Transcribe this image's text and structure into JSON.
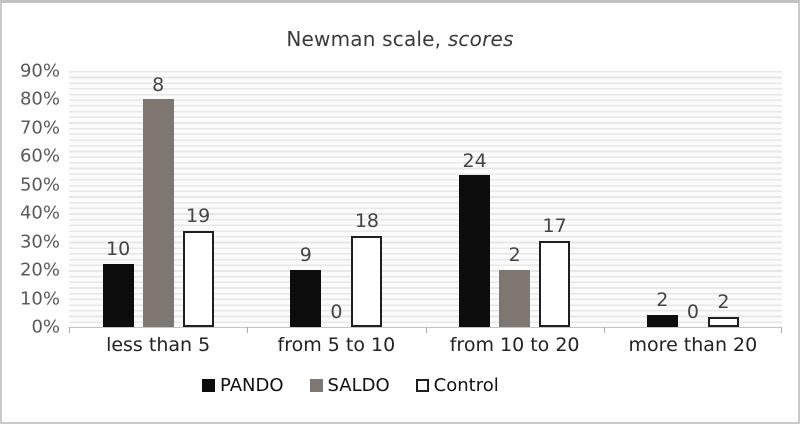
{
  "chart_data": {
    "type": "bar",
    "title_regular": "Newman scale, ",
    "title_italic": "scores",
    "categories": [
      "less than 5",
      "from 5 to 10",
      "from 10 to 20",
      "more than 20"
    ],
    "series": [
      {
        "name": "PANDO",
        "color": "#0d0d0d",
        "border_color": "#0d0d0d",
        "border_px": 0,
        "counts": [
          10,
          9,
          24,
          2
        ],
        "percents": [
          22.2,
          20.0,
          53.3,
          4.4
        ]
      },
      {
        "name": "SALDO",
        "color": "#7d7671",
        "border_color": "#7d7671",
        "border_px": 0,
        "counts": [
          8,
          0,
          2,
          0
        ],
        "percents": [
          80.0,
          0,
          20.0,
          0
        ]
      },
      {
        "name": "Control",
        "color": "#ffffff",
        "border_color": "#1f1f1f",
        "border_px": 2,
        "counts": [
          19,
          18,
          17,
          2
        ],
        "percents": [
          33.9,
          32.1,
          30.4,
          3.6
        ]
      }
    ],
    "yticks": [
      "90%",
      "80%",
      "70%",
      "60%",
      "50%",
      "40%",
      "30%",
      "20%",
      "10%",
      "0%"
    ],
    "ylim": [
      0,
      90
    ],
    "value_labels": "counts",
    "grid": "minor-horizontal",
    "legend_position": "bottom"
  }
}
